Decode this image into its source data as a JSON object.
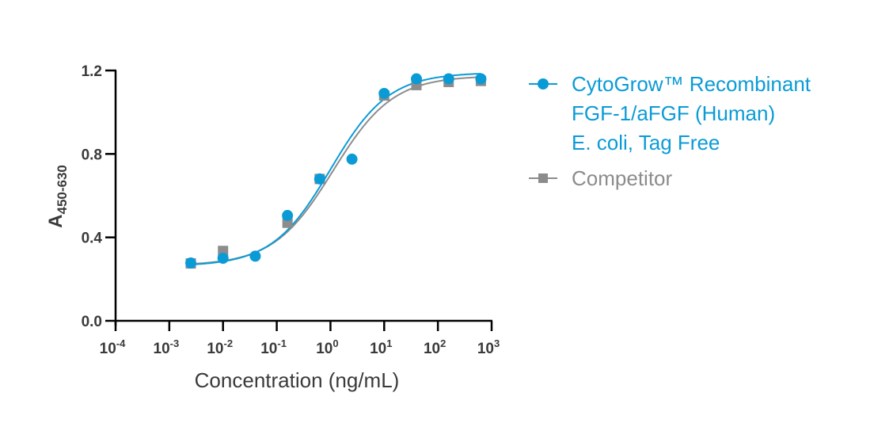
{
  "chart_data": {
    "type": "scatter",
    "title": "",
    "xlabel": "Concentration (ng/mL)",
    "ylabel_main": "A",
    "ylabel_sub": "450-630",
    "xscale": "log",
    "xlim_log10": [
      -4,
      3
    ],
    "ylim": [
      0,
      1.2
    ],
    "x_ticks": [
      {
        "base": "10",
        "exp": "-4"
      },
      {
        "base": "10",
        "exp": "-3"
      },
      {
        "base": "10",
        "exp": "-2"
      },
      {
        "base": "10",
        "exp": "-1"
      },
      {
        "base": "10",
        "exp": "0"
      },
      {
        "base": "10",
        "exp": "1"
      },
      {
        "base": "10",
        "exp": "2"
      },
      {
        "base": "10",
        "exp": "3"
      }
    ],
    "y_ticks": [
      "0.0",
      "0.4",
      "0.8",
      "1.2"
    ],
    "y_tick_values": [
      0,
      0.4,
      0.8,
      1.2
    ],
    "grid": false,
    "legend_position": "right",
    "series": [
      {
        "name": "Competitor",
        "color": "#8c8c8c",
        "marker": "square",
        "x_log10": [
          -2.6,
          -2.0,
          -0.8,
          -0.2,
          1.0,
          1.6,
          2.2,
          2.8
        ],
        "y": [
          0.275,
          0.335,
          0.47,
          0.68,
          1.08,
          1.13,
          1.145,
          1.15
        ],
        "fit": {
          "bottom": 0.265,
          "top": 1.175,
          "log_ec50": 0.05,
          "hill": 0.78
        }
      },
      {
        "name": "CytoGrow™ Recombinant FGF-1/aFGF (Human) E. coli, Tag Free",
        "color": "#0a9bd6",
        "marker": "circle",
        "x_log10": [
          -2.6,
          -2.0,
          -1.4,
          -0.8,
          -0.2,
          0.4,
          1.0,
          1.6,
          2.2,
          2.8
        ],
        "y": [
          0.277,
          0.3,
          0.31,
          0.505,
          0.68,
          0.775,
          1.09,
          1.16,
          1.16,
          1.16
        ],
        "fit": {
          "bottom": 0.262,
          "top": 1.19,
          "log_ec50": 0.0,
          "hill": 0.8
        }
      }
    ]
  },
  "legend": {
    "items": [
      {
        "lines": [
          "CytoGrow™ Recombinant",
          "FGF-1/aFGF (Human)",
          "E. coli, Tag Free"
        ],
        "color": "#0a9bd6"
      },
      {
        "lines": [
          "Competitor"
        ],
        "color": "#8c8c8c"
      }
    ]
  }
}
